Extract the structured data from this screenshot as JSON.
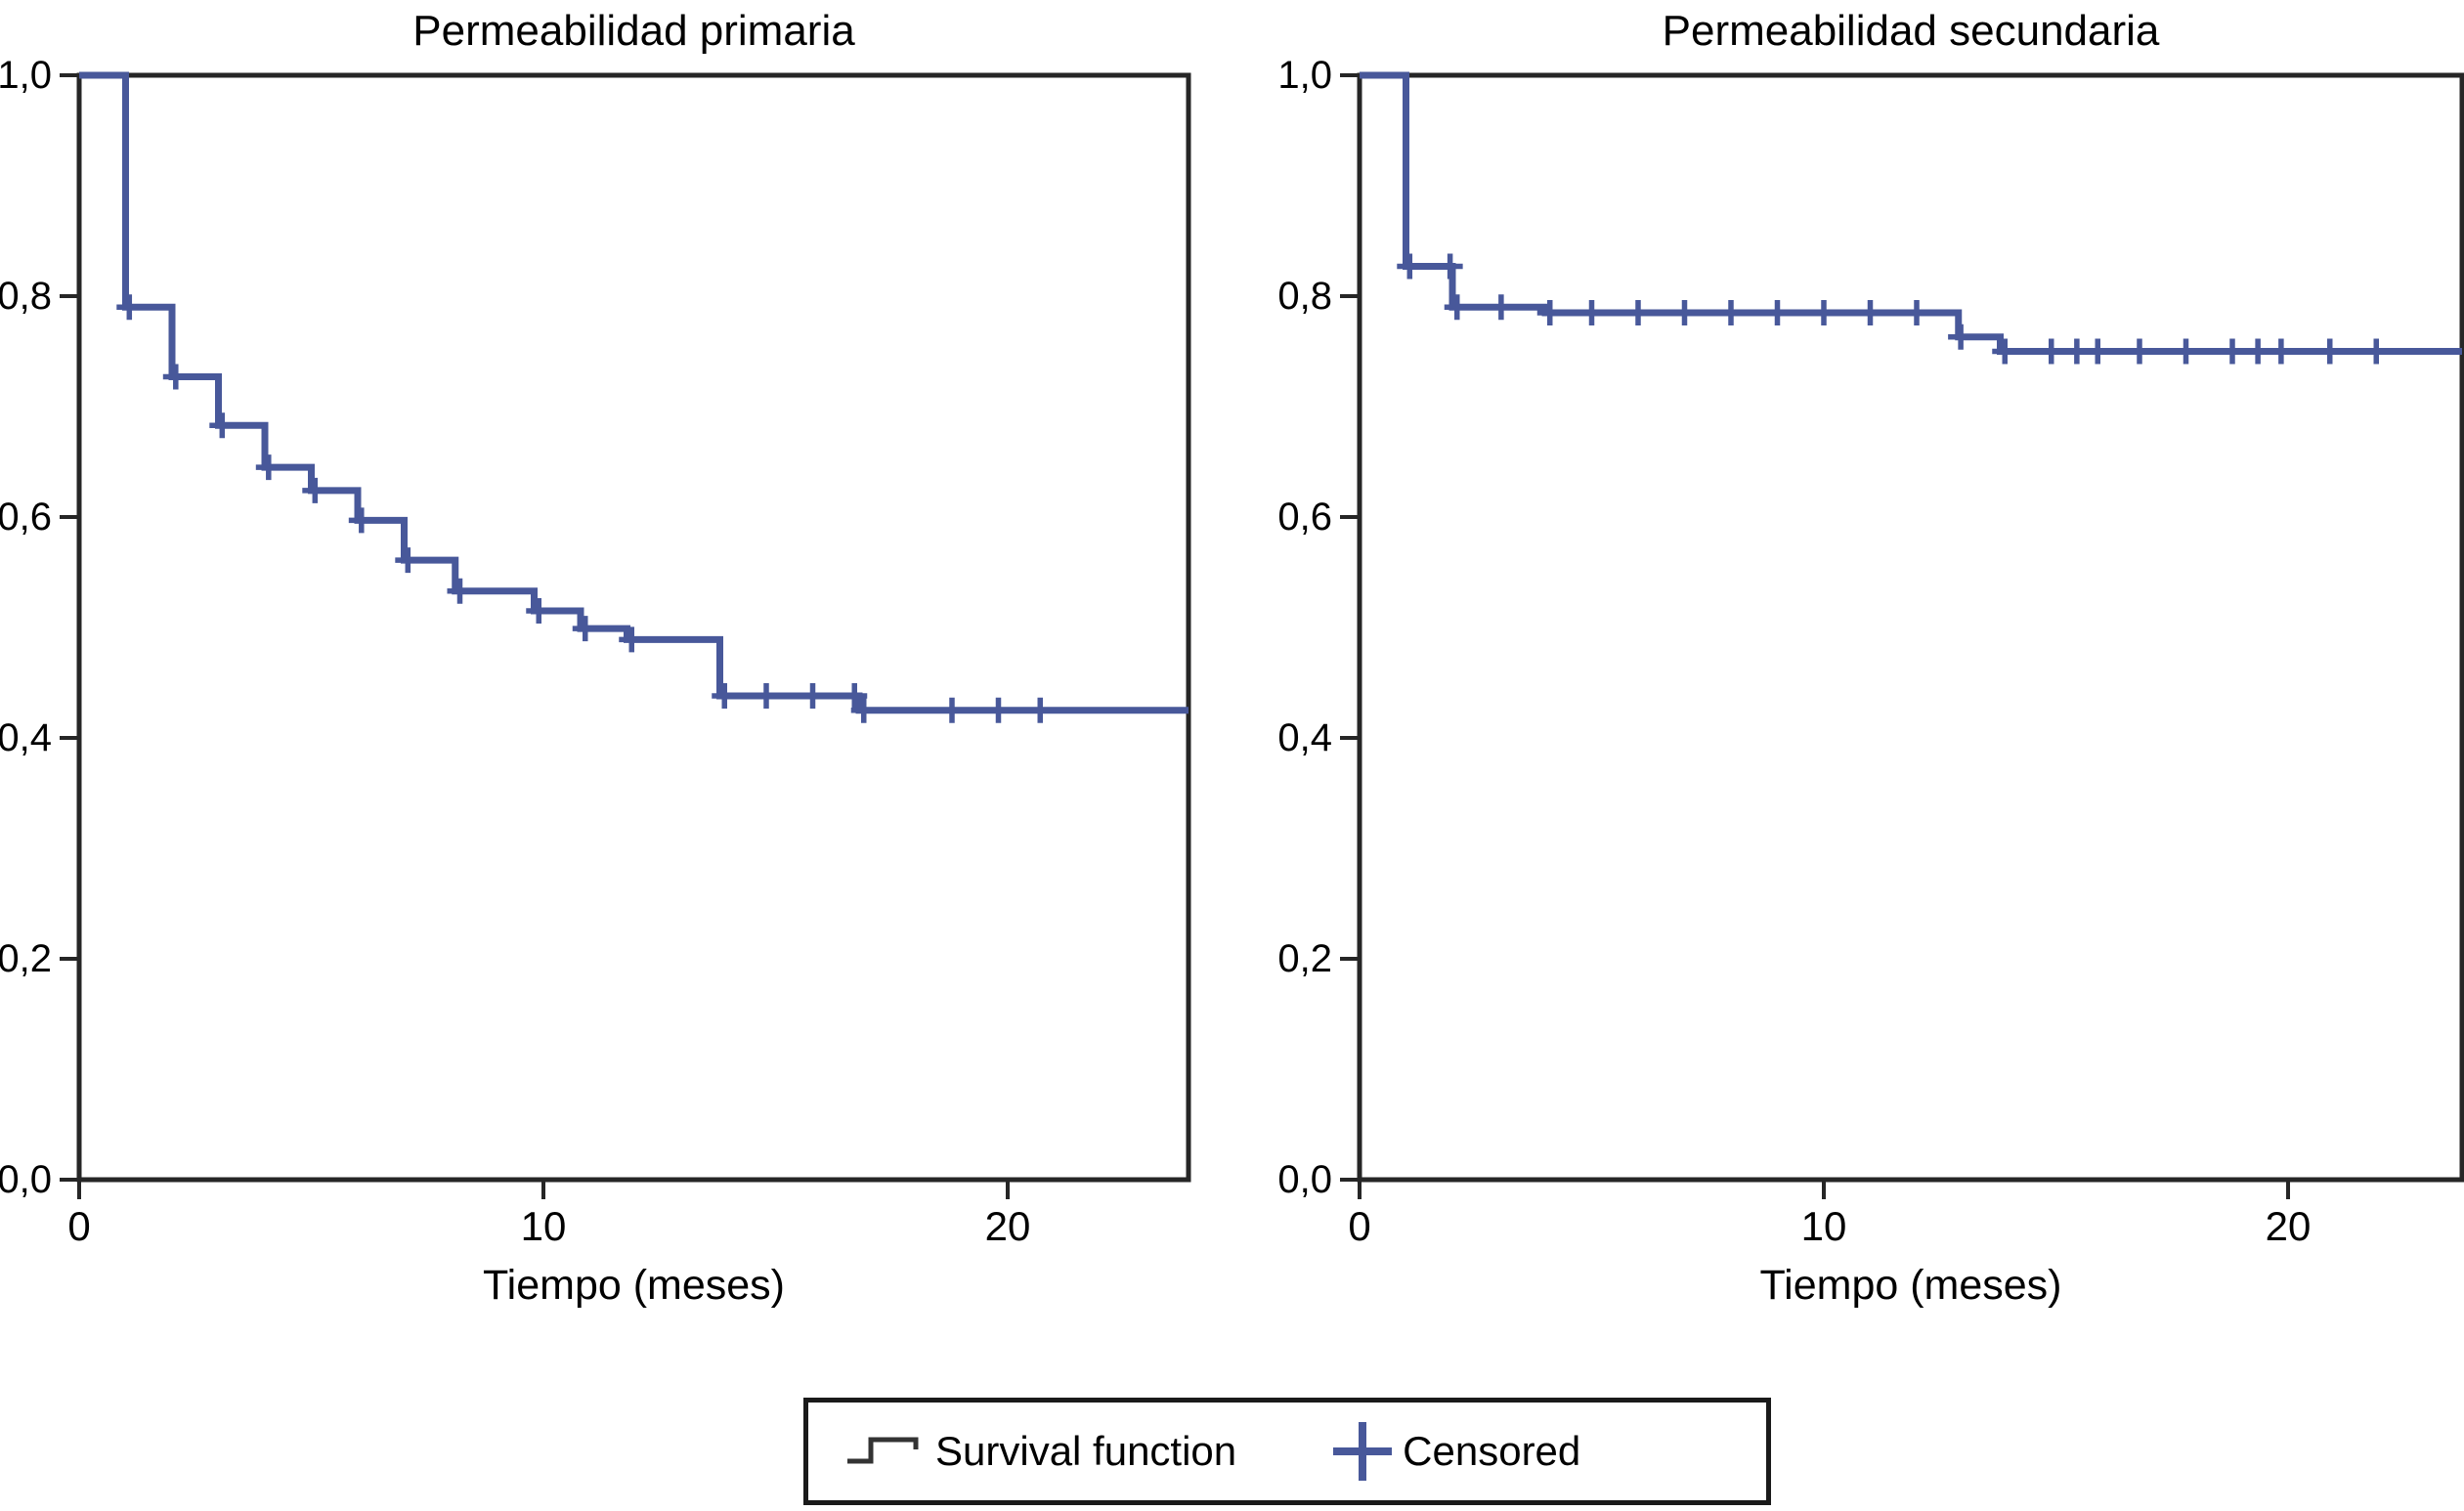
{
  "page": {
    "background": "#ffffff"
  },
  "colors": {
    "curve": "#48589A",
    "axis": "#262626",
    "text": "#000000",
    "legend_border": "#1a1a1a",
    "legend_step_glyph": "#333333"
  },
  "legend": {
    "survival_label": "Survival function",
    "censored_label": "Censored"
  },
  "chart_data": [
    {
      "type": "line",
      "variant": "kaplan-meier-step",
      "title": "Permeabilidad primaria",
      "xlabel": "Tiempo (meses)",
      "ylabel": "",
      "xlim": [
        0,
        24
      ],
      "ylim": [
        0,
        1
      ],
      "x_ticks": [
        0,
        10,
        20
      ],
      "x_tick_labels": [
        "0",
        "10",
        "20"
      ],
      "y_ticks": [
        0,
        0.2,
        0.4,
        0.6,
        0.8,
        1.0
      ],
      "y_tick_labels": [
        "0,0",
        "0,2",
        "0,4",
        "0,6",
        "0,8",
        "1,0"
      ],
      "grid": false,
      "legend_position": "bottom",
      "series": [
        {
          "name": "Survival function",
          "levels_t_start_t_end_S": [
            [
              0,
              1,
              1.0
            ],
            [
              1,
              2,
              0.79
            ],
            [
              2,
              3,
              0.727
            ],
            [
              3,
              4,
              0.683
            ],
            [
              4,
              5,
              0.645
            ],
            [
              5,
              6,
              0.624
            ],
            [
              6,
              7,
              0.597
            ],
            [
              7,
              8.1,
              0.561
            ],
            [
              8.1,
              9.8,
              0.533
            ],
            [
              9.8,
              10.8,
              0.515
            ],
            [
              10.8,
              11.8,
              0.499
            ],
            [
              11.8,
              13.8,
              0.489
            ],
            [
              13.8,
              16.8,
              0.438
            ],
            [
              16.8,
              24.2,
              0.425
            ]
          ],
          "censored_t_S": [
            [
              1.08,
              0.79
            ],
            [
              2.08,
              0.727
            ],
            [
              3.08,
              0.683
            ],
            [
              4.08,
              0.645
            ],
            [
              5.08,
              0.624
            ],
            [
              6.08,
              0.597
            ],
            [
              7.08,
              0.561
            ],
            [
              8.2,
              0.533
            ],
            [
              9.9,
              0.515
            ],
            [
              10.9,
              0.499
            ],
            [
              11.9,
              0.489
            ],
            [
              13.9,
              0.438
            ],
            [
              14.8,
              0.438
            ],
            [
              15.8,
              0.438
            ],
            [
              16.7,
              0.438
            ],
            [
              16.9,
              0.425
            ],
            [
              18.8,
              0.425
            ],
            [
              19.8,
              0.425
            ],
            [
              20.7,
              0.425
            ]
          ]
        }
      ]
    },
    {
      "type": "line",
      "variant": "kaplan-meier-step",
      "title": "Permeabilidad secundaria",
      "xlabel": "Tiempo (meses)",
      "ylabel": "",
      "xlim": [
        0,
        24
      ],
      "ylim": [
        0,
        1
      ],
      "x_ticks": [
        0,
        10,
        20
      ],
      "x_tick_labels": [
        "0",
        "10",
        "20"
      ],
      "y_ticks": [
        0,
        0.2,
        0.4,
        0.6,
        0.8,
        1.0
      ],
      "y_tick_labels": [
        "0,0",
        "0,2",
        "0,4",
        "0,6",
        "0,8",
        "1,0"
      ],
      "grid": false,
      "legend_position": "bottom",
      "series": [
        {
          "name": "Survival function",
          "levels_t_start_t_end_S": [
            [
              0,
              1,
              1.0
            ],
            [
              1,
              2,
              0.827
            ],
            [
              2,
              4,
              0.79
            ],
            [
              4,
              12.9,
              0.785
            ],
            [
              12.9,
              13.8,
              0.763
            ],
            [
              13.8,
              24.2,
              0.75
            ]
          ],
          "censored_t_S": [
            [
              1.08,
              0.827
            ],
            [
              1.95,
              0.827
            ],
            [
              2.1,
              0.79
            ],
            [
              3.05,
              0.79
            ],
            [
              4.1,
              0.785
            ],
            [
              5,
              0.785
            ],
            [
              6,
              0.785
            ],
            [
              7,
              0.785
            ],
            [
              8,
              0.785
            ],
            [
              9,
              0.785
            ],
            [
              10,
              0.785
            ],
            [
              11,
              0.785
            ],
            [
              12,
              0.785
            ],
            [
              12.95,
              0.763
            ],
            [
              13.9,
              0.75
            ],
            [
              14.9,
              0.75
            ],
            [
              15.45,
              0.75
            ],
            [
              15.9,
              0.75
            ],
            [
              16.8,
              0.75
            ],
            [
              17.8,
              0.75
            ],
            [
              18.8,
              0.75
            ],
            [
              19.35,
              0.75
            ],
            [
              19.85,
              0.75
            ],
            [
              20.9,
              0.75
            ],
            [
              21.9,
              0.75
            ]
          ]
        }
      ]
    }
  ]
}
